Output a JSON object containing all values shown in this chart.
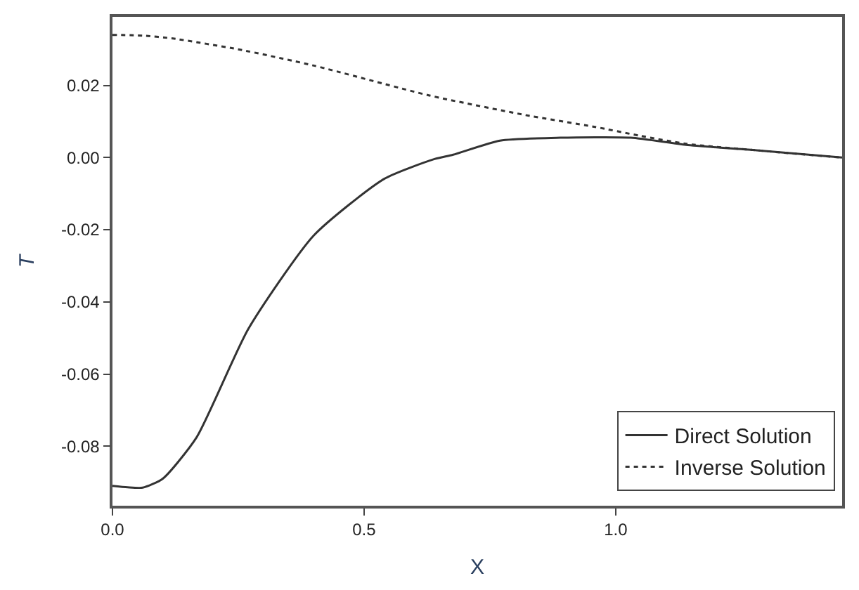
{
  "chart_data": {
    "type": "line",
    "xlabel": "X",
    "ylabel": "T",
    "xlim": [
      0,
      1.45
    ],
    "ylim": [
      -0.0965,
      0.039
    ],
    "xticks": [
      {
        "value": 0,
        "label": "0.0"
      },
      {
        "value": 0.5,
        "label": "0.5"
      },
      {
        "value": 1,
        "label": "1.0"
      }
    ],
    "yticks": [
      {
        "value": -0.08,
        "label": "-0.08"
      },
      {
        "value": -0.06,
        "label": "-0.06"
      },
      {
        "value": -0.04,
        "label": "-0.04"
      },
      {
        "value": -0.02,
        "label": "-0.02"
      },
      {
        "value": 0,
        "label": "0.00"
      },
      {
        "value": 0.02,
        "label": "0.02"
      }
    ],
    "legend": "bottom right",
    "series": [
      {
        "name": "Direct Solution",
        "color": "#333333",
        "line_style": "solid",
        "x": [
          0,
          0.03,
          0.06,
          0.1,
          0.167,
          0.27,
          0.4,
          0.54,
          0.64,
          0.677,
          0.77,
          0.89,
          1.03,
          1.14,
          1.28,
          1.45
        ],
        "values": [
          -0.091,
          -0.0914,
          -0.0915,
          -0.089,
          -0.0776,
          -0.0475,
          -0.0216,
          -0.0059,
          -0.0004,
          0.0008,
          0.0047,
          0.0055,
          0.0055,
          0.0035,
          0.002,
          0.0
        ]
      },
      {
        "name": "Inverse Solution",
        "color": "#333333",
        "line_style": "dotted",
        "x": [
          0,
          0.06,
          0.12,
          0.25,
          0.4,
          0.63,
          0.82,
          0.955,
          1.05,
          1.14,
          1.28,
          1.45
        ],
        "values": [
          0.034,
          0.0338,
          0.033,
          0.03,
          0.0255,
          0.0172,
          0.0118,
          0.0086,
          0.006,
          0.0038,
          0.002,
          0.0
        ]
      }
    ]
  }
}
